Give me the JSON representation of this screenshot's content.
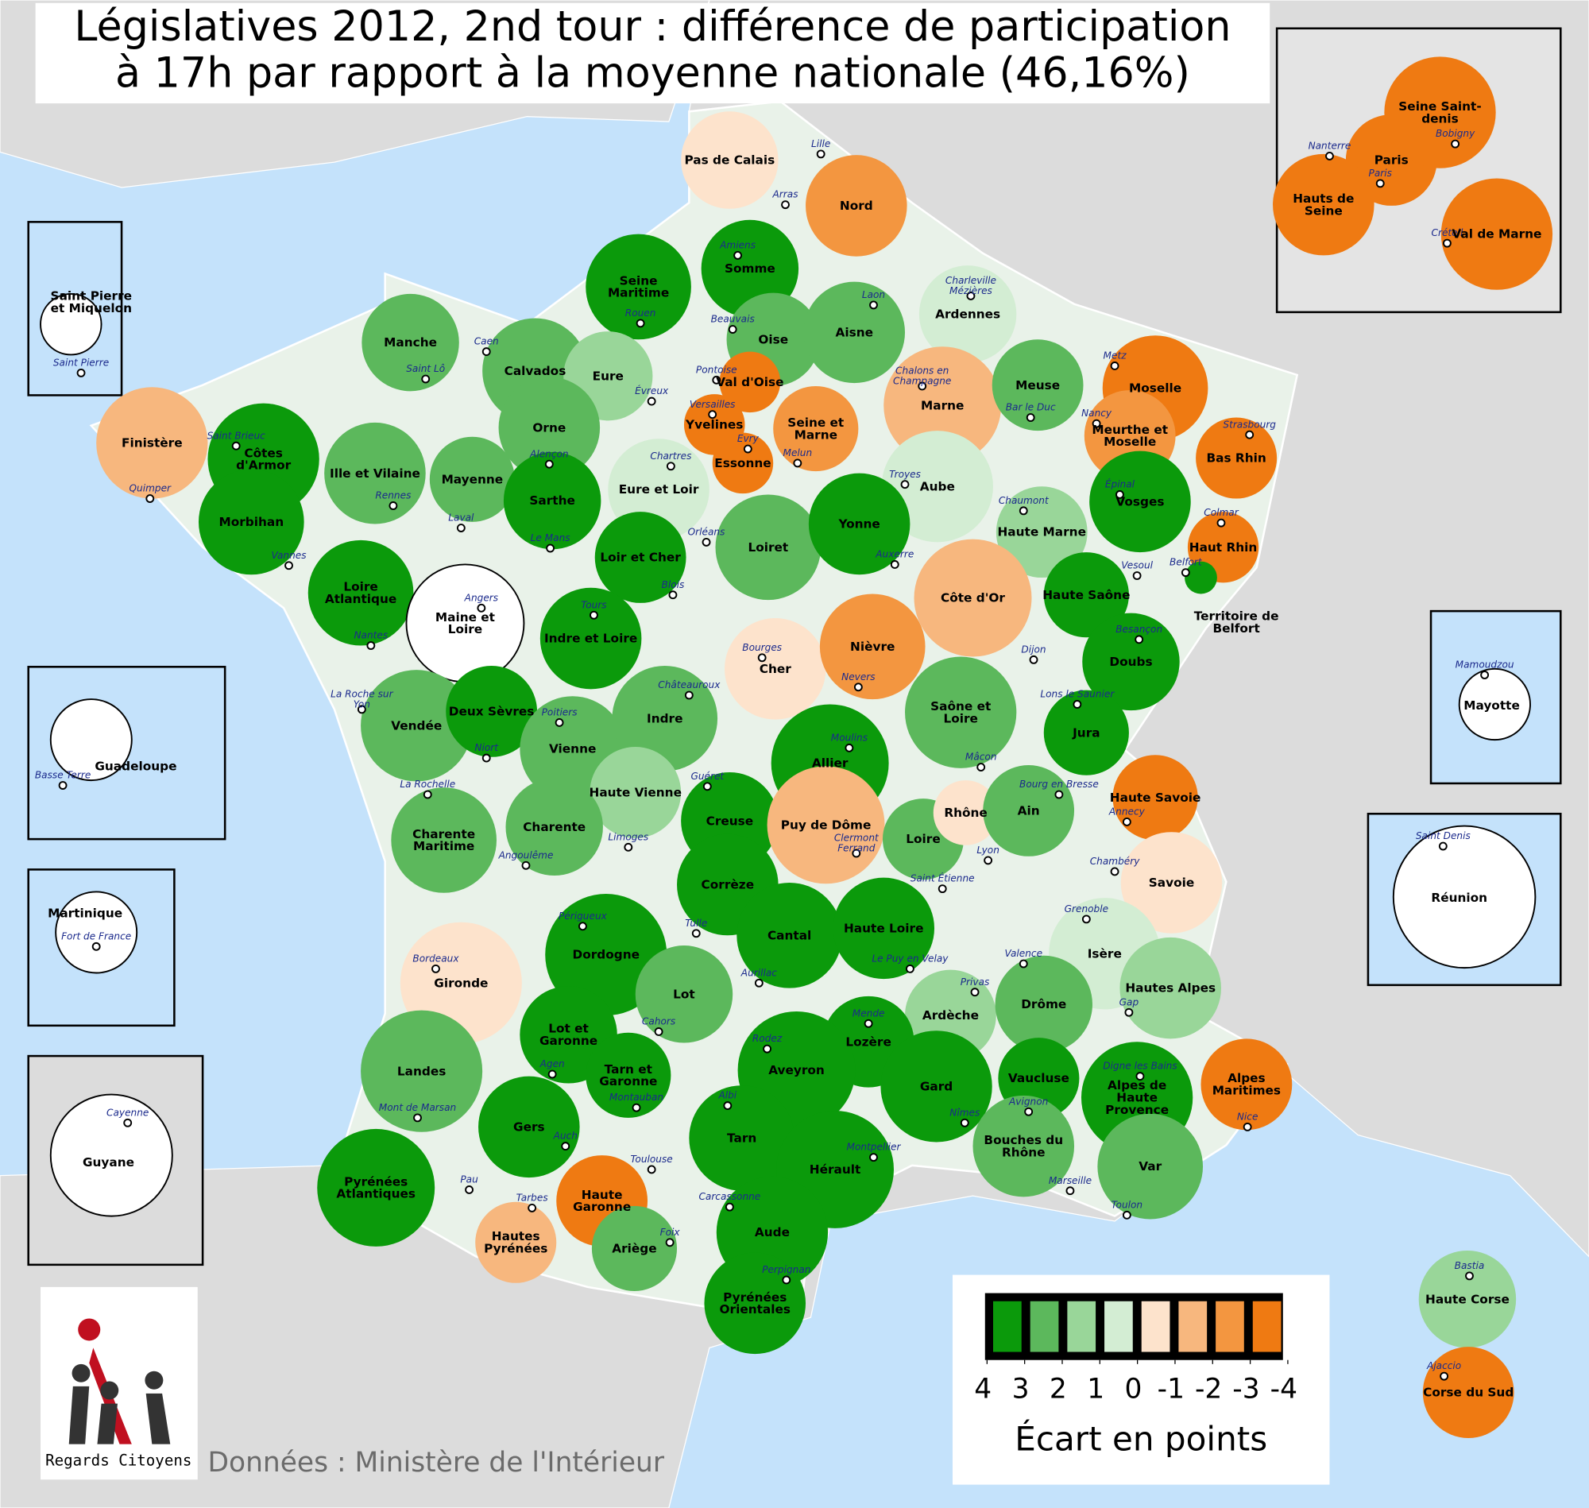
{
  "title": [
    "Législatives 2012, 2nd tour : différence de participation",
    "à 17h par rapport à la moyenne nationale (46,16%)"
  ],
  "departments": [
    {
      "name": "Pas de Calais",
      "city": "Arras",
      "value": -0.5
    },
    {
      "name": "Nord",
      "city": "Lille",
      "value": -2.5
    },
    {
      "name": "Somme",
      "city": "Amiens",
      "value": 3.5
    },
    {
      "name": "Seine Maritime",
      "city": "Rouen",
      "value": 3.5
    },
    {
      "name": "Oise",
      "city": "Beauvais",
      "value": 2.5
    },
    {
      "name": "Aisne",
      "city": "Laon",
      "value": 2.5
    },
    {
      "name": "Ardennes",
      "city": "Charleville Mézières",
      "value": 0.5
    },
    {
      "name": "Manche",
      "city": "Saint Lô",
      "value": 2.5
    },
    {
      "name": "Calvados",
      "city": "Caen",
      "value": 2.5
    },
    {
      "name": "Eure",
      "city": "Évreux",
      "value": 1.5
    },
    {
      "name": "Val d'Oise",
      "city": "Pontoise",
      "value": -3.5
    },
    {
      "name": "Yvelines",
      "city": "Versailles",
      "value": -3.5
    },
    {
      "name": "Essonne",
      "city": "Evry",
      "value": -3.5
    },
    {
      "name": "Seine et Marne",
      "city": "Melun",
      "value": -2.5
    },
    {
      "name": "Marne",
      "city": "Chalons en Champagne",
      "value": -1.5
    },
    {
      "name": "Meuse",
      "city": "Bar le Duc",
      "value": 2.5
    },
    {
      "name": "Moselle",
      "city": "Metz",
      "value": -3.5
    },
    {
      "name": "Meurthe et Moselle",
      "city": "Nancy",
      "value": -2.5
    },
    {
      "name": "Bas Rhin",
      "city": "Strasbourg",
      "value": -3.5
    },
    {
      "name": "Haut Rhin",
      "city": "Colmar",
      "value": -3.5
    },
    {
      "name": "Finistère",
      "city": "Quimper",
      "value": -1.5
    },
    {
      "name": "Côtes d'Armor",
      "city": "Saint Brieuc",
      "value": 3.5
    },
    {
      "name": "Morbihan",
      "city": "Vannes",
      "value": 3.5
    },
    {
      "name": "Ille et Vilaine",
      "city": "Rennes",
      "value": 2.5
    },
    {
      "name": "Mayenne",
      "city": "Laval",
      "value": 2.5
    },
    {
      "name": "Orne",
      "city": "Alençon",
      "value": 2.5
    },
    {
      "name": "Sarthe",
      "city": "Le Mans",
      "value": 3.5
    },
    {
      "name": "Eure et Loir",
      "city": "Chartres",
      "value": 0.5
    },
    {
      "name": "Loiret",
      "city": "Orléans",
      "value": 2.5
    },
    {
      "name": "Aube",
      "city": "Troyes",
      "value": 0.5
    },
    {
      "name": "Haute Marne",
      "city": "Chaumont",
      "value": 1.5
    },
    {
      "name": "Vosges",
      "city": "Épinal",
      "value": 3.5
    },
    {
      "name": "Yonne",
      "city": "Auxerre",
      "value": 3.5
    },
    {
      "name": "Loir et Cher",
      "city": "Blois",
      "value": 3.5
    },
    {
      "name": "Loire Atlantique",
      "city": "Nantes",
      "value": 3.5
    },
    {
      "name": "Maine et Loire",
      "city": "Angers",
      "value": null
    },
    {
      "name": "Indre et Loire",
      "city": "Tours",
      "value": 3.5
    },
    {
      "name": "Cher",
      "city": "Bourges",
      "value": -0.5
    },
    {
      "name": "Nièvre",
      "city": "Nevers",
      "value": -2.5
    },
    {
      "name": "Côte d'Or",
      "city": "Dijon",
      "value": -1.5
    },
    {
      "name": "Haute Saône",
      "city": "Vesoul",
      "value": 3.5
    },
    {
      "name": "Territoire de Belfort",
      "city": "Belfort",
      "value": 3.5
    },
    {
      "name": "Doubs",
      "city": "Besançon",
      "value": 3.5
    },
    {
      "name": "Vendée",
      "city": "La Roche sur Yon",
      "value": 2.5
    },
    {
      "name": "Deux Sèvres",
      "city": "Niort",
      "value": 3.5
    },
    {
      "name": "Vienne",
      "city": "Poitiers",
      "value": 2.5
    },
    {
      "name": "Indre",
      "city": "Châteauroux",
      "value": 2.5
    },
    {
      "name": "Allier",
      "city": "Moulins",
      "value": 3.5
    },
    {
      "name": "Saône et Loire",
      "city": "Mâcon",
      "value": 2.5
    },
    {
      "name": "Jura",
      "city": "Lons le Saunier",
      "value": 3.5
    },
    {
      "name": "Haute Vienne",
      "city": "Limoges",
      "value": 1.5
    },
    {
      "name": "Creuse",
      "city": "Guéret",
      "value": 3.5
    },
    {
      "name": "Charente",
      "city": "Angoulême",
      "value": 2.5
    },
    {
      "name": "Charente Maritime",
      "city": "La Rochelle",
      "value": 2.5
    },
    {
      "name": "Puy de Dôme",
      "city": "Clermont Ferrand",
      "value": -1.5
    },
    {
      "name": "Loire",
      "city": "Saint Étienne",
      "value": 2.5
    },
    {
      "name": "Rhône",
      "city": "Lyon",
      "value": -0.5
    },
    {
      "name": "Ain",
      "city": "Bourg en Bresse",
      "value": 2.5
    },
    {
      "name": "Haute Savoie",
      "city": "Annecy",
      "value": -3.5
    },
    {
      "name": "Savoie",
      "city": "Chambéry",
      "value": -0.5
    },
    {
      "name": "Corrèze",
      "city": "Tulle",
      "value": 3.5
    },
    {
      "name": "Dordogne",
      "city": "Périgueux",
      "value": 3.5
    },
    {
      "name": "Cantal",
      "city": "Aurillac",
      "value": 3.5
    },
    {
      "name": "Haute Loire",
      "city": "Le Puy en Velay",
      "value": 3.5
    },
    {
      "name": "Isère",
      "city": "Grenoble",
      "value": 0.5
    },
    {
      "name": "Gironde",
      "city": "Bordeaux",
      "value": -0.5
    },
    {
      "name": "Ardèche",
      "city": "Privas",
      "value": 1.5
    },
    {
      "name": "Drôme",
      "city": "Valence",
      "value": 2.5
    },
    {
      "name": "Hautes Alpes",
      "city": "Gap",
      "value": 1.5
    },
    {
      "name": "Lot",
      "city": "Cahors",
      "value": 2.5
    },
    {
      "name": "Lozère",
      "city": "Mende",
      "value": 3.5
    },
    {
      "name": "Lot et Garonne",
      "city": "Agen",
      "value": 3.5
    },
    {
      "name": "Landes",
      "city": "Mont de Marsan",
      "value": 2.5
    },
    {
      "name": "Aveyron",
      "city": "Rodez",
      "value": 3.5
    },
    {
      "name": "Tarn et Garonne",
      "city": "Montauban",
      "value": 3.5
    },
    {
      "name": "Gard",
      "city": "Nîmes",
      "value": 3.5
    },
    {
      "name": "Vaucluse",
      "city": "Avignon",
      "value": 3.5
    },
    {
      "name": "Alpes de Haute Provence",
      "city": "Digne les Bains",
      "value": 3.5
    },
    {
      "name": "Alpes Maritimes",
      "city": "Nice",
      "value": -3.5
    },
    {
      "name": "Gers",
      "city": "Auch",
      "value": 3.5
    },
    {
      "name": "Tarn",
      "city": "Albi",
      "value": 3.5
    },
    {
      "name": "Hérault",
      "city": "Montpellier",
      "value": 3.5
    },
    {
      "name": "Bouches du Rhône",
      "city": "Marseille",
      "value": 2.5
    },
    {
      "name": "Var",
      "city": "Toulon",
      "value": 2.5
    },
    {
      "name": "Haute Garonne",
      "city": "Toulouse",
      "value": -3.5
    },
    {
      "name": "Pyrénées Atlantiques",
      "city": "Pau",
      "value": 3.5
    },
    {
      "name": "Hautes Pyrénées",
      "city": "Tarbes",
      "value": -1.5
    },
    {
      "name": "Ariège",
      "city": "Foix",
      "value": 2.5
    },
    {
      "name": "Aude",
      "city": "Carcassonne",
      "value": 3.5
    },
    {
      "name": "Pyrénées Orientales",
      "city": "Perpignan",
      "value": 3.5
    },
    {
      "name": "Haute Corse",
      "city": "Bastia",
      "value": 1.5
    },
    {
      "name": "Corse du Sud",
      "city": "Ajaccio",
      "value": -3.5
    },
    {
      "name": "Paris",
      "city": "Paris",
      "value": -3.5
    },
    {
      "name": "Seine Saint-denis",
      "city": "Bobigny",
      "value": -3.5
    },
    {
      "name": "Hauts de Seine",
      "city": "Nanterre",
      "value": -3.5
    },
    {
      "name": "Val de Marne",
      "city": "Créteil",
      "value": -3.5
    },
    {
      "name": "Saint Pierre et Miquelon",
      "city": "Saint Pierre",
      "value": null
    },
    {
      "name": "Guadeloupe",
      "city": "Basse Terre",
      "value": null
    },
    {
      "name": "Martinique",
      "city": "Fort de France",
      "value": null
    },
    {
      "name": "Guyane",
      "city": "Cayenne",
      "value": null
    },
    {
      "name": "Mayotte",
      "city": "Mamoudzou",
      "value": null
    },
    {
      "name": "Réunion",
      "city": "Saint Denis",
      "value": null
    }
  ],
  "legend": {
    "ticks": [
      4,
      3,
      2,
      1,
      0,
      -1,
      -2,
      -3,
      -4
    ],
    "colors": [
      "#0b9a0b",
      "#5cb85c",
      "#99d699",
      "#d3edd3",
      "#fde3cc",
      "#f7b77e",
      "#f39640",
      "#ef7a12"
    ],
    "label": "Écart en points"
  },
  "logo": "Regards Citoyens",
  "source": "Données : Ministère de l'Intérieur"
}
